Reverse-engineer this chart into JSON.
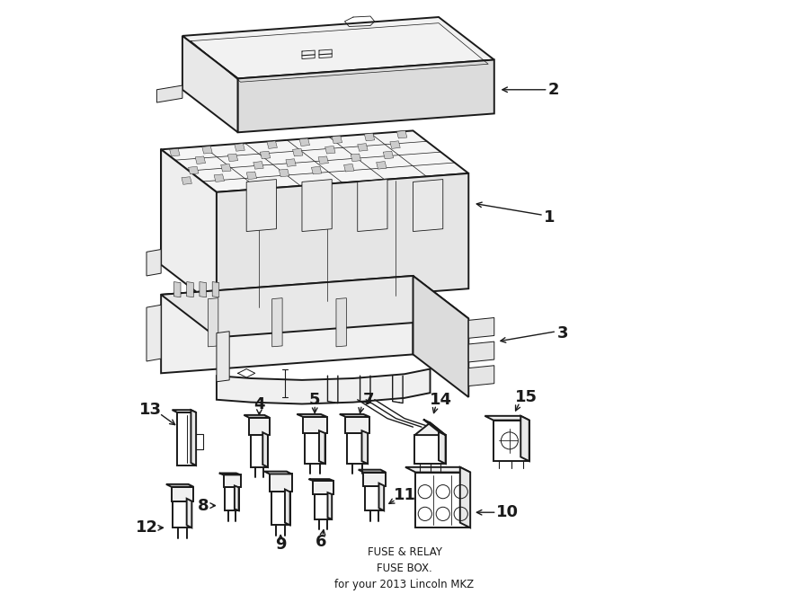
{
  "bg_color": "#ffffff",
  "line_color": "#1a1a1a",
  "lw_main": 1.4,
  "lw_detail": 0.7,
  "title_lines": [
    "FUSE & RELAY",
    "FUSE BOX.",
    "for your 2013 Lincoln MKZ"
  ],
  "title_fontsize": 8.5,
  "label_fontsize": 13,
  "figsize": [
    9.0,
    6.61
  ],
  "dpi": 100
}
